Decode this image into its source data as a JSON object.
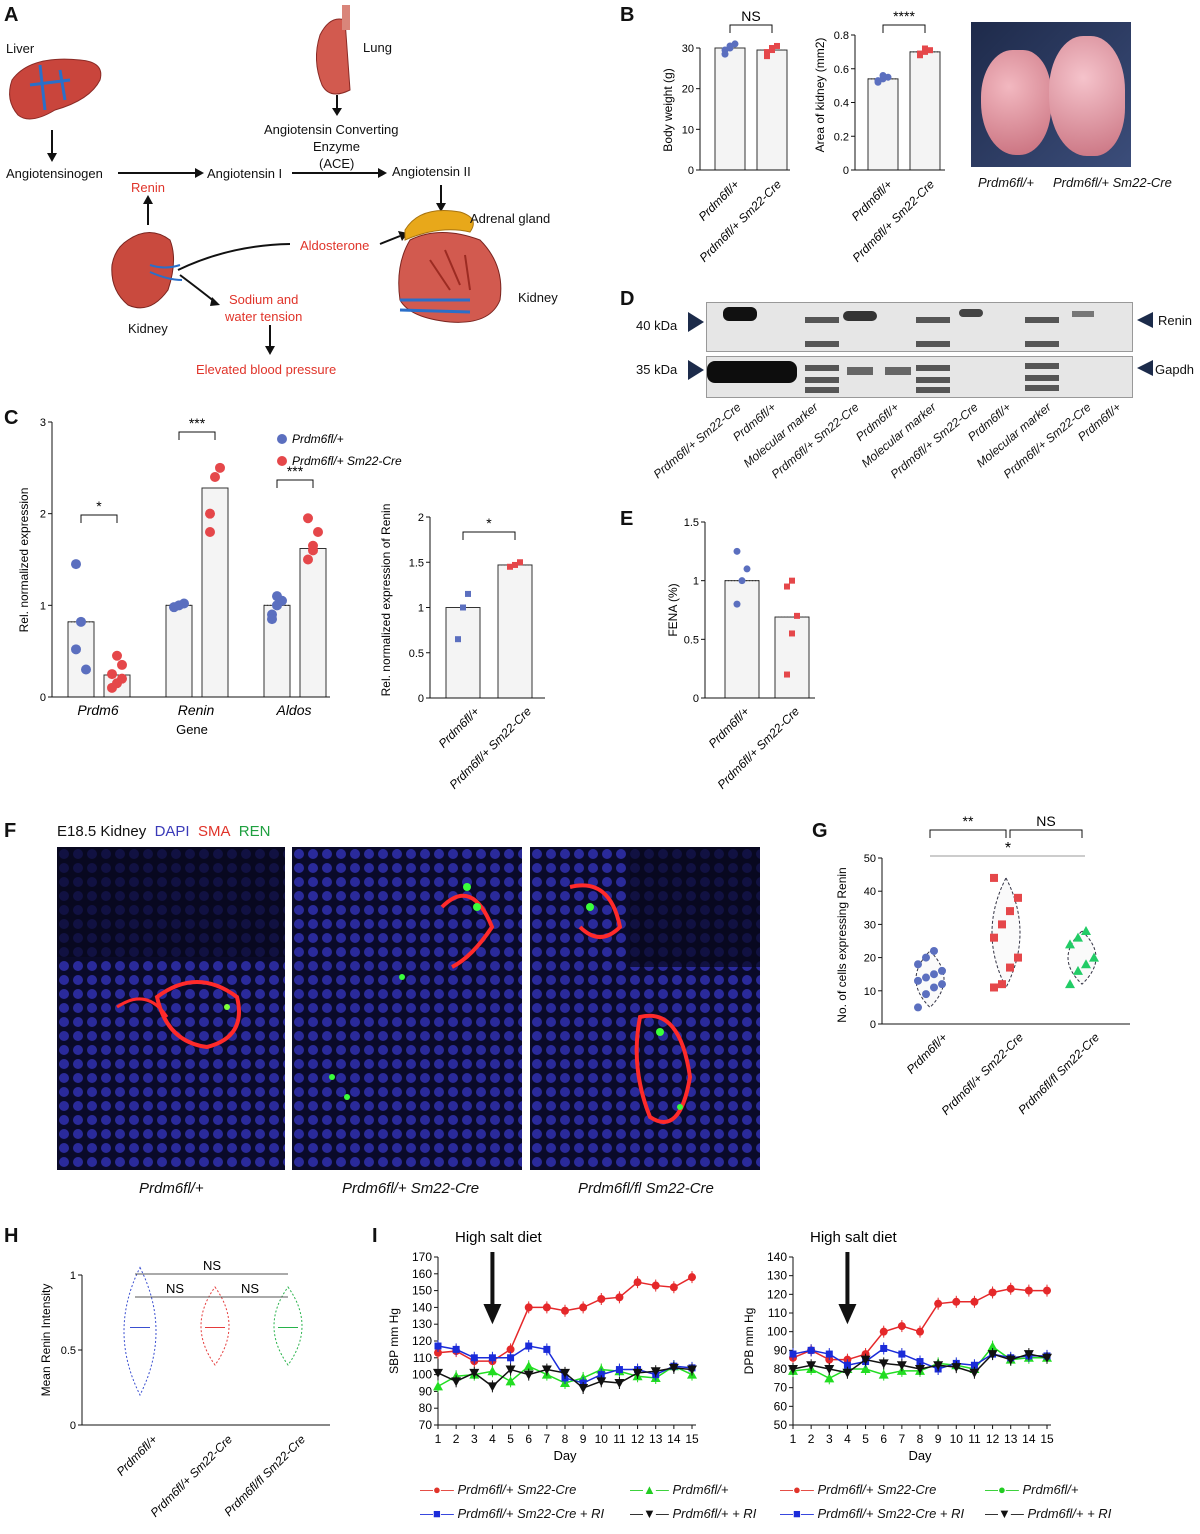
{
  "panels": {
    "A": "A",
    "B": "B",
    "C": "C",
    "D": "D",
    "E": "E",
    "F": "F",
    "G": "G",
    "H": "H",
    "I": "I"
  },
  "panelA": {
    "liver": "Liver",
    "lung": "Lung",
    "angiotensinogen": "Angiotensinogen",
    "renin": "Renin",
    "angiotensin1": "Angiotensin I",
    "ace_line1": "Angiotensin Converting",
    "ace_line2": "Enzyme",
    "ace_line3": "(ACE)",
    "angiotensin2": "Angiotensin II",
    "adrenal": "Adrenal gland",
    "aldosterone": "Aldosterone",
    "kidney_left": "Kidney",
    "sodium1": "Sodium and",
    "sodium2": "water tension",
    "kidney_right": "Kidney",
    "elevated": "Elevated blood pressure"
  },
  "groups": {
    "ctrl": "Prdm6fl/+",
    "cre": "Prdm6fl/+ Sm22-Cre",
    "flfl_cre": "Prdm6fl/fl Sm22-Cre"
  },
  "panelB": {
    "photo_label_ctrl": "Prdm6fl/+",
    "photo_label_cre": "Prdm6fl/+ Sm22-Cre"
  },
  "panelD": {
    "kda40": "40 kDa",
    "kda35": "35 kDa",
    "renin": "Renin",
    "gapdh": "Gapdh",
    "lanes": [
      "Prdm6fl/+ Sm22-Cre",
      "Prdm6fl/+",
      "Molecular marker",
      "Prdm6fl/+ Sm22-Cre",
      "Prdm6fl/+",
      "Molecular marker",
      "Prdm6fl/+ Sm22-Cre",
      "Prdm6fl/+",
      "Molecular marker",
      "Prdm6fl/+ Sm22-Cre",
      "Prdm6fl/+"
    ]
  },
  "panelF": {
    "title_prefix": "E18.5 Kidney",
    "dapi": "DAPI",
    "sma": "SMA",
    "ren": "REN",
    "labels": [
      "Prdm6fl/+",
      "Prdm6fl/+ Sm22-Cre",
      "Prdm6fl/fl Sm22-Cre"
    ]
  },
  "panelI": {
    "title_left": "High salt diet",
    "title_right": "High salt diet"
  },
  "legendI": {
    "cre": "Prdm6fl/+ Sm22-Cre",
    "ctrl": "Prdm6fl/+",
    "cre_ri": "Prdm6fl/+ Sm22-Cre + RI",
    "ctrl_ri": "Prdm6fl/+ + RI"
  },
  "chart_data": [
    {
      "id": "B1",
      "type": "bar",
      "categories": [
        "Prdm6fl/+",
        "Prdm6fl/+ Sm22-Cre"
      ],
      "values": [
        30,
        29.5
      ],
      "ylabel": "Body weight (g)",
      "ylim": [
        0,
        30
      ],
      "yticks": [
        0,
        10,
        20,
        30
      ],
      "significance": "NS"
    },
    {
      "id": "B2",
      "type": "bar",
      "categories": [
        "Prdm6fl/+",
        "Prdm6fl/+ Sm22-Cre"
      ],
      "values": [
        0.54,
        0.7
      ],
      "ylabel": "Area of kidney (mm2)",
      "ylim": [
        0,
        0.8
      ],
      "yticks": [
        0.0,
        0.2,
        0.4,
        0.6,
        0.8
      ],
      "significance": "****"
    },
    {
      "id": "C1",
      "type": "bar",
      "categories": [
        "Prdm6",
        "Renin",
        "Aldos"
      ],
      "xlabel": "Gene",
      "ylabel": "Rel. normalized expression",
      "ylim": [
        0,
        3
      ],
      "yticks": [
        0,
        1,
        2,
        3
      ],
      "series": [
        {
          "name": "Prdm6fl/+",
          "values": [
            0.82,
            1.0,
            1.0
          ]
        },
        {
          "name": "Prdm6fl/+ Sm22-Cre",
          "values": [
            0.24,
            2.28,
            1.62
          ]
        }
      ],
      "significance": [
        "*",
        "***",
        "***"
      ]
    },
    {
      "id": "C2",
      "type": "bar",
      "categories": [
        "Prdm6fl/+",
        "Prdm6fl/+ Sm22-Cre"
      ],
      "values": [
        1.0,
        1.47
      ],
      "ylabel": "Rel. normalized expression of Renin",
      "ylim": [
        0,
        2.0
      ],
      "yticks": [
        0.0,
        0.5,
        1.0,
        1.5,
        2.0
      ],
      "significance": "*"
    },
    {
      "id": "E",
      "type": "bar",
      "categories": [
        "Prdm6fl/+",
        "Prdm6fl/+ Sm22-Cre"
      ],
      "values": [
        1.0,
        0.69
      ],
      "ylabel": "FENA (%)",
      "ylim": [
        0,
        1.5
      ],
      "yticks": [
        0.0,
        0.5,
        1.0,
        1.5
      ]
    },
    {
      "id": "G",
      "type": "violin",
      "categories": [
        "Prdm6fl/+",
        "Prdm6fl/+ Sm22-Cre",
        "Prdm6fl/fl Sm22-Cre"
      ],
      "ylabel": "No. of cells expressing Renin",
      "ylim": [
        0,
        50
      ],
      "yticks": [
        0,
        10,
        20,
        30,
        40,
        50
      ],
      "points": [
        [
          5,
          9,
          11,
          12,
          13,
          14,
          15,
          16,
          18,
          20,
          22
        ],
        [
          11,
          12,
          17,
          20,
          26,
          30,
          34,
          38,
          44
        ],
        [
          12,
          16,
          18,
          20,
          24,
          26,
          28
        ]
      ],
      "significance": [
        "**",
        "NS",
        "*"
      ]
    },
    {
      "id": "H",
      "type": "violin",
      "categories": [
        "Prdm6fl/+",
        "Prdm6fl/+ Sm22-Cre",
        "Prdm6fl/fl Sm22-Cre"
      ],
      "ylabel": "Mean Renin Intensity",
      "ylim": [
        0,
        1.0
      ],
      "yticks": [
        0.0,
        0.5,
        1.0
      ],
      "significance": [
        "NS",
        "NS",
        "NS"
      ]
    },
    {
      "id": "I1",
      "type": "line",
      "xlabel": "Day",
      "ylabel": "SBP mm Hg",
      "ylim": [
        70,
        170
      ],
      "x": [
        1,
        2,
        3,
        4,
        5,
        6,
        7,
        8,
        9,
        10,
        11,
        12,
        13,
        14,
        15
      ],
      "series": [
        {
          "name": "Prdm6fl/+ Sm22-Cre",
          "values": [
            113,
            114,
            108,
            108,
            115,
            140,
            140,
            138,
            140,
            145,
            146,
            155,
            153,
            152,
            158
          ]
        },
        {
          "name": "Prdm6fl/+",
          "values": [
            93,
            99,
            100,
            102,
            96,
            105,
            100,
            95,
            98,
            103,
            102,
            99,
            98,
            105,
            100
          ]
        },
        {
          "name": "Prdm6fl/+ Sm22-Cre + RI",
          "values": [
            117,
            115,
            110,
            110,
            110,
            117,
            115,
            98,
            95,
            100,
            103,
            103,
            100,
            105,
            104
          ]
        },
        {
          "name": "Prdm6fl/+ + RI",
          "values": [
            101,
            96,
            101,
            93,
            103,
            100,
            103,
            101,
            92,
            96,
            95,
            101,
            102,
            104,
            103
          ]
        }
      ]
    },
    {
      "id": "I2",
      "type": "line",
      "xlabel": "Day",
      "ylabel": "DPB mm Hg",
      "ylim": [
        50,
        140
      ],
      "x": [
        1,
        2,
        3,
        4,
        5,
        6,
        7,
        8,
        9,
        10,
        11,
        12,
        13,
        14,
        15
      ],
      "series": [
        {
          "name": "Prdm6fl/+ Sm22-Cre",
          "values": [
            86,
            90,
            85,
            85,
            88,
            100,
            103,
            100,
            115,
            116,
            116,
            121,
            123,
            122,
            122
          ]
        },
        {
          "name": "Prdm6fl/+",
          "values": [
            79,
            80,
            75,
            80,
            80,
            77,
            79,
            79,
            83,
            82,
            80,
            92,
            85,
            86,
            86
          ]
        },
        {
          "name": "Prdm6fl/+ Sm22-Cre + RI",
          "values": [
            88,
            90,
            88,
            82,
            84,
            91,
            88,
            84,
            80,
            83,
            82,
            88,
            86,
            87,
            87
          ]
        },
        {
          "name": "Prdm6fl/+ + RI",
          "values": [
            80,
            82,
            80,
            78,
            85,
            83,
            82,
            80,
            82,
            81,
            78,
            88,
            85,
            88,
            86
          ]
        }
      ]
    }
  ]
}
